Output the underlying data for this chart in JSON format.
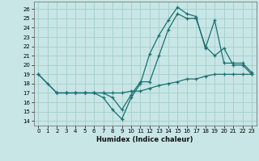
{
  "xlabel": "Humidex (Indice chaleur)",
  "xlim": [
    -0.5,
    23.5
  ],
  "ylim": [
    13.5,
    26.8
  ],
  "yticks": [
    14,
    15,
    16,
    17,
    18,
    19,
    20,
    21,
    22,
    23,
    24,
    25,
    26
  ],
  "xticks": [
    0,
    1,
    2,
    3,
    4,
    5,
    6,
    7,
    8,
    9,
    10,
    11,
    12,
    13,
    14,
    15,
    16,
    17,
    18,
    19,
    20,
    21,
    22,
    23
  ],
  "bg_color": "#c8e6e6",
  "grid_color": "#a8d0d0",
  "line_color": "#1a7070",
  "curves": [
    {
      "comment": "curve going up high, peak at x=15 ~26, then x=16 ~25.5, x=17 ~25, down to x=19 ~24.8, x=20 ~20, x=21 ~20, x=22 ~20, x=23 ~19",
      "x": [
        0,
        1,
        2,
        3,
        4,
        5,
        6,
        7,
        8,
        9,
        10,
        11,
        12,
        13,
        14,
        15,
        16,
        17,
        18,
        19,
        20,
        21,
        22,
        23
      ],
      "y": [
        19,
        18,
        17,
        17,
        17,
        17,
        17,
        16.5,
        15.2,
        14.2,
        16.5,
        18,
        21.2,
        23.2,
        24.8,
        26.2,
        25.5,
        25.2,
        21.8,
        24.8,
        20.2,
        20.2,
        20.2,
        19.2
      ]
    },
    {
      "comment": "second curve, goes up to x=15 ~25.5, x=16 ~25, x=17 ~25, x=18 ~22, x=19 ~21, x=20 ~21.8, x=21 ~20, x=22 ~20, x=23 ~19",
      "x": [
        0,
        2,
        3,
        4,
        5,
        6,
        7,
        8,
        9,
        10,
        11,
        12,
        13,
        14,
        15,
        16,
        17,
        18,
        19,
        20,
        21,
        22,
        23
      ],
      "y": [
        19,
        17,
        17,
        17,
        17,
        17,
        17,
        16.5,
        15.2,
        16.8,
        18.2,
        18.2,
        21,
        23.8,
        25.5,
        25,
        25,
        22,
        21,
        21.8,
        20,
        20,
        19
      ]
    },
    {
      "x": [
        2,
        3,
        4,
        5,
        6,
        7,
        8,
        9,
        10,
        11,
        12,
        13,
        14,
        15,
        16,
        17,
        18,
        19,
        20,
        21,
        22,
        23
      ],
      "y": [
        17,
        17,
        17,
        17,
        17,
        17,
        17,
        17,
        17.2,
        17.2,
        17.5,
        17.8,
        18,
        18.2,
        18.5,
        18.5,
        18.8,
        19,
        19,
        19,
        19,
        19
      ]
    }
  ]
}
